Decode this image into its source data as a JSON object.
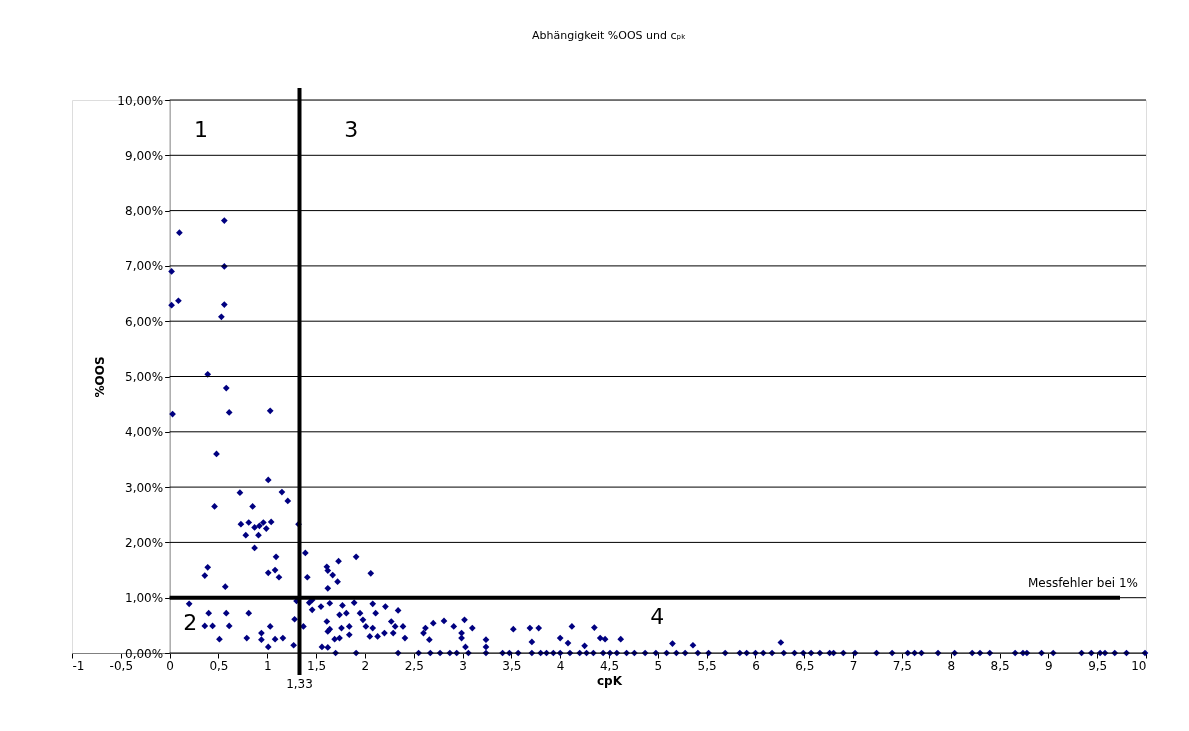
{
  "chart_data": {
    "type": "scatter",
    "title": "Abhängigkeit %OOS und cₚₖ",
    "xlabel": "cpK",
    "ylabel": "%OOS",
    "x": [
      0.56,
      0.1,
      0.02,
      0.56,
      0.02,
      0.09,
      0.56,
      0.53,
      0.39,
      0.58,
      0.03,
      0.61,
      1.03,
      0.48,
      1.01,
      0.72,
      1.15,
      1.21,
      0.46,
      0.85,
      0.73,
      0.81,
      0.87,
      0.92,
      0.96,
      1.04,
      0.99,
      0.78,
      0.91,
      1.32,
      0.87,
      1.09,
      1.39,
      0.39,
      0.36,
      1.01,
      1.08,
      1.12,
      0.57,
      1.41,
      1.61,
      1.73,
      1.91,
      1.62,
      1.67,
      1.72,
      1.62,
      0.2,
      1.3,
      1.43,
      1.46,
      1.55,
      1.64,
      1.77,
      1.89,
      1.46,
      0.4,
      0.58,
      0.81,
      1.74,
      1.81,
      0.36,
      0.44,
      0.61,
      1.28,
      1.61,
      1.64,
      1.76,
      1.84,
      0.51,
      0.79,
      0.94,
      0.94,
      1.03,
      1.08,
      1.16,
      1.01,
      1.27,
      1.37,
      1.62,
      1.69,
      1.74,
      1.56,
      1.62,
      1.7,
      1.91,
      1.84,
      2.06,
      2.08,
      2.21,
      2.11,
      2.34,
      1.95,
      1.98,
      2.01,
      2.08,
      2.05,
      2.13,
      2.2,
      2.27,
      2.31,
      2.39,
      2.41,
      2.29,
      2.6,
      2.62,
      2.7,
      2.81,
      2.91,
      3.02,
      3.1,
      2.99,
      2.99,
      2.66,
      3.03,
      3.24,
      3.24,
      3.52,
      3.69,
      3.78,
      3.71,
      4.0,
      4.08,
      4.12,
      4.25,
      4.35,
      4.41,
      4.46,
      4.62,
      2.34,
      2.55,
      2.67,
      2.77,
      2.87,
      2.94,
      3.06,
      3.24,
      3.41,
      3.48,
      3.57,
      3.71,
      3.8,
      3.86,
      3.93,
      4.0,
      4.1,
      4.2,
      4.27,
      4.34,
      4.44,
      4.51,
      4.58,
      4.68,
      4.76,
      4.87,
      4.98,
      5.09,
      5.19,
      5.28,
      5.41,
      5.52,
      5.69,
      5.84,
      5.91,
      6.0,
      6.08,
      6.17,
      6.29,
      6.4,
      6.49,
      6.57,
      6.66,
      6.76,
      6.8,
      6.9,
      7.02,
      7.24,
      7.4,
      7.56,
      7.63,
      7.7,
      7.87,
      8.04,
      8.22,
      8.3,
      8.4,
      8.66,
      8.74,
      8.78,
      8.93,
      9.05,
      9.34,
      9.44,
      9.53,
      9.58,
      9.68,
      9.8,
      9.99,
      5.15,
      5.36,
      6.26
    ],
    "values": [
      7.82,
      7.6,
      6.9,
      6.99,
      6.29,
      6.37,
      6.3,
      6.08,
      5.04,
      4.79,
      4.32,
      4.35,
      4.38,
      3.6,
      3.13,
      2.9,
      2.91,
      2.75,
      2.65,
      2.65,
      2.33,
      2.36,
      2.27,
      2.3,
      2.36,
      2.37,
      2.25,
      2.13,
      2.13,
      2.33,
      1.9,
      1.74,
      1.81,
      1.55,
      1.4,
      1.45,
      1.5,
      1.37,
      1.2,
      1.37,
      1.56,
      1.66,
      1.74,
      1.49,
      1.41,
      1.29,
      1.17,
      0.89,
      0.94,
      0.91,
      0.96,
      0.84,
      0.9,
      0.86,
      0.91,
      0.78,
      0.72,
      0.72,
      0.72,
      0.69,
      0.72,
      0.49,
      0.49,
      0.49,
      0.61,
      0.57,
      0.43,
      0.45,
      0.48,
      0.25,
      0.27,
      0.36,
      0.24,
      0.48,
      0.25,
      0.27,
      0.11,
      0.14,
      0.48,
      0.39,
      0.25,
      0.27,
      0.11,
      0.1,
      0,
      0,
      0.33,
      1.44,
      0.89,
      0.84,
      0.72,
      0.77,
      0.72,
      0.6,
      0.48,
      0.45,
      0.3,
      0.3,
      0.36,
      0.57,
      0.48,
      0.48,
      0.27,
      0.36,
      0.36,
      0.45,
      0.54,
      0.58,
      0.48,
      0.6,
      0.45,
      0.36,
      0.27,
      0.24,
      0.11,
      0.24,
      0.11,
      0.43,
      0.45,
      0.45,
      0.2,
      0.27,
      0.18,
      0.48,
      0.13,
      0.46,
      0.27,
      0.25,
      0.25,
      0,
      0,
      0,
      0,
      0,
      0,
      0,
      0,
      0,
      0,
      0,
      0,
      0,
      0,
      0,
      0,
      0,
      0,
      0,
      0,
      0,
      0,
      0,
      0,
      0,
      0,
      0,
      0,
      0,
      0,
      0,
      0,
      0,
      0,
      0,
      0,
      0,
      0,
      0,
      0,
      0,
      0,
      0,
      0,
      0,
      0,
      0,
      0,
      0,
      0,
      0,
      0,
      0,
      0,
      0,
      0,
      0,
      0,
      0,
      0,
      0,
      0,
      0,
      0,
      0,
      0,
      0,
      0,
      0,
      0.17,
      0.14,
      0.19
    ],
    "color": "#000080",
    "marker": "diamond",
    "grid": "y",
    "legend": false,
    "xlim": [
      -1,
      10
    ],
    "ylim": [
      0,
      10
    ],
    "xticks": [
      -1,
      {
        "value": -0.5,
        "label": "-0,5"
      },
      0,
      {
        "value": 0.5,
        "label": "0,5"
      },
      1,
      {
        "value": 1.5,
        "label": "1,5"
      },
      2,
      {
        "value": 2.5,
        "label": "2,5"
      },
      3,
      {
        "value": 3.5,
        "label": "3,5"
      },
      4,
      {
        "value": 4.5,
        "label": "4,5"
      },
      5,
      {
        "value": 5.5,
        "label": "5,5"
      },
      6,
      {
        "value": 6.5,
        "label": "6,5"
      },
      7,
      {
        "value": 7.5,
        "label": "7,5"
      },
      8,
      {
        "value": 8.5,
        "label": "8,5"
      },
      9,
      {
        "value": 9.5,
        "label": "9,5"
      },
      10
    ],
    "yticks": [
      {
        "value": 0,
        "label": "0,00%"
      },
      {
        "value": 1,
        "label": "1,00%"
      },
      {
        "value": 2,
        "label": "2,00%"
      },
      {
        "value": 3,
        "label": "3,00%"
      },
      {
        "value": 4,
        "label": "4,00%"
      },
      {
        "value": 5,
        "label": "5,00%"
      },
      {
        "value": 6,
        "label": "6,00%"
      },
      {
        "value": 7,
        "label": "7,00%"
      },
      {
        "value": 8,
        "label": "8,00%"
      },
      {
        "value": 9,
        "label": "9,00%"
      },
      {
        "value": 10,
        "label": "10,00%"
      }
    ],
    "ref_lines": [
      {
        "axis": "x",
        "value": 1.33,
        "label": "1,33",
        "color": "#000000"
      },
      {
        "axis": "y",
        "value": 1,
        "label": "Messfehler bei 1%",
        "color": "#000000"
      }
    ],
    "annotations": [
      "1",
      "3",
      "2",
      "4"
    ]
  }
}
